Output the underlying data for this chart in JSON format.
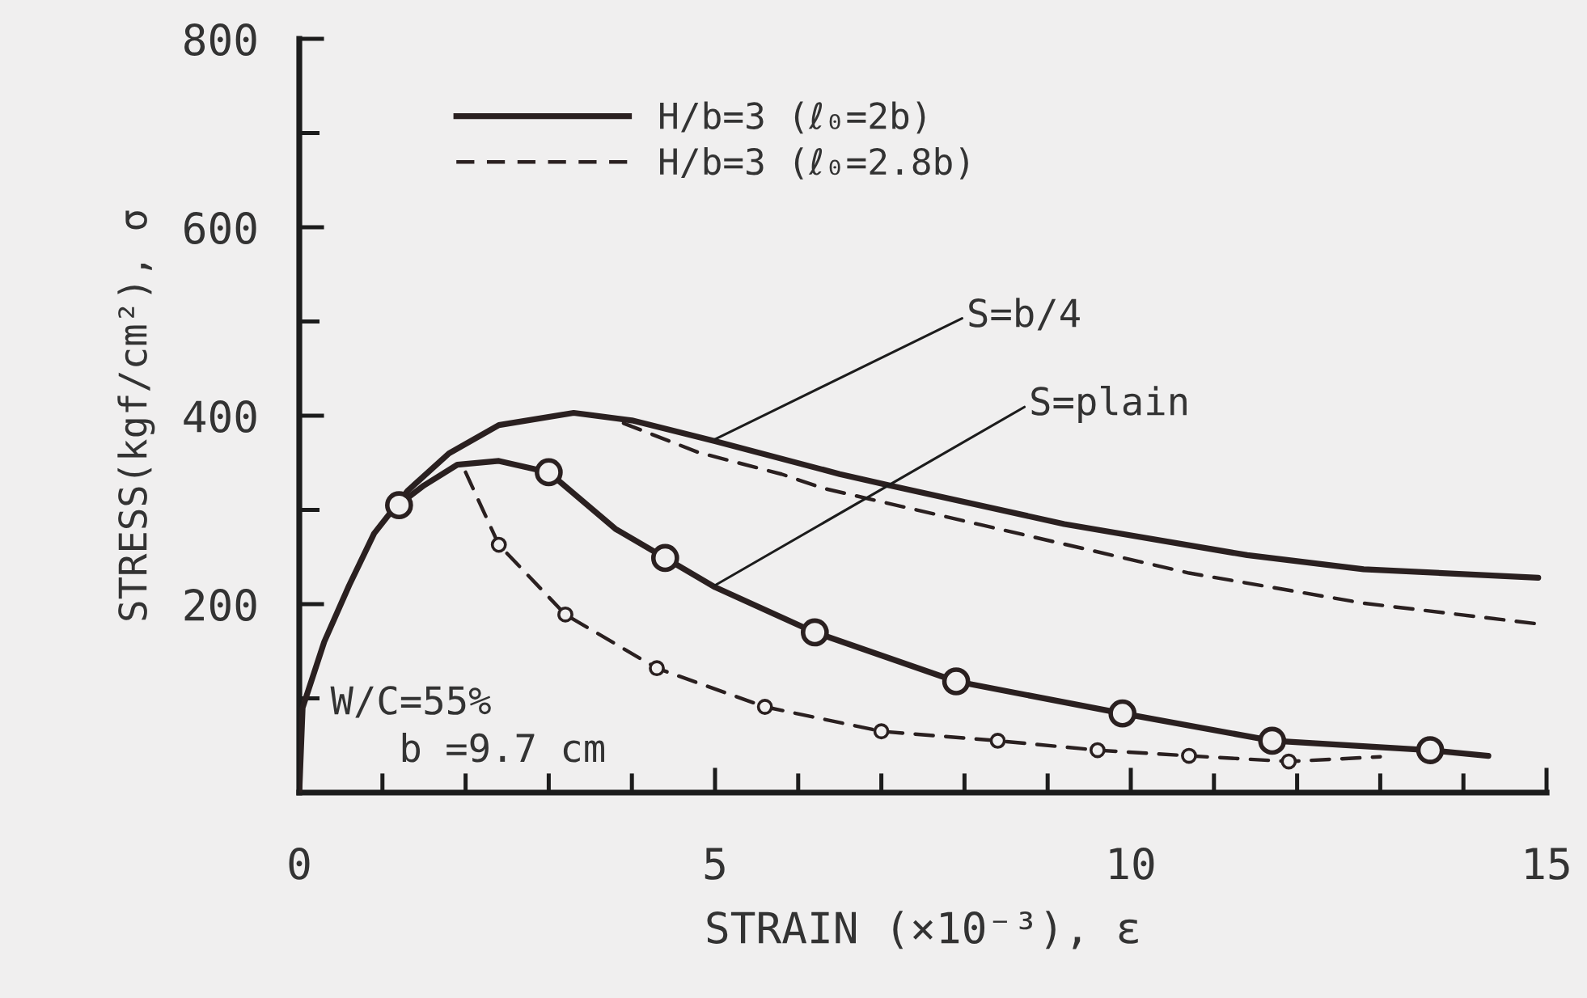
{
  "chart_data": {
    "type": "line",
    "xlabel": "STRAIN (×10⁻³), ε",
    "ylabel": "STRESS(kgf/cm²), σ",
    "xlim": [
      0,
      15
    ],
    "xticks": [
      0,
      {
        "value": 1,
        "label": null
      },
      {
        "value": 2,
        "label": null
      },
      {
        "value": 3,
        "label": null
      },
      {
        "value": 4,
        "label": null
      },
      5,
      {
        "value": 6,
        "label": null
      },
      {
        "value": 7,
        "label": null
      },
      {
        "value": 8,
        "label": null
      },
      {
        "value": 9,
        "label": null
      },
      10,
      {
        "value": 11,
        "label": null
      },
      {
        "value": 12,
        "label": null
      },
      {
        "value": 13,
        "label": null
      },
      {
        "value": 14,
        "label": null
      },
      15
    ],
    "ylim": [
      0,
      800
    ],
    "yticks": [
      {
        "value": 100,
        "label": null
      },
      200,
      {
        "value": 300,
        "label": null
      },
      400,
      {
        "value": 500,
        "label": null
      },
      600,
      {
        "value": 700,
        "label": null
      },
      800
    ],
    "legend": "top left",
    "series": [
      {
        "name": "H/b=3 (ℓ₀=2b)",
        "color": "#2a2020",
        "line_style": "solid",
        "x": [
          0,
          0.04,
          0.3,
          0.6,
          0.9,
          1.3,
          1.8,
          2.4,
          3.3,
          4.0,
          5.0,
          6.5,
          7.1,
          9.2,
          11.4,
          12.8,
          14.9
        ],
        "values": [
          0,
          90,
          160,
          220,
          275,
          320,
          360,
          390,
          403,
          395,
          373,
          338,
          326,
          285,
          252,
          237,
          228
        ]
      },
      {
        "name": "H/b=3 (ℓ₀=2.8b)",
        "color": "#2a2020",
        "line_style": "dashed",
        "x": [
          3.9,
          4.8,
          5.8,
          6.3,
          8.5,
          10.7,
          12.8,
          14.9
        ],
        "values": [
          392,
          361,
          338,
          323,
          278,
          233,
          201,
          179
        ]
      },
      {
        "color": "#2a2020",
        "line_style": "solid",
        "x": [
          1.2,
          1.5,
          1.9,
          2.4,
          3.0,
          3.8,
          4.4,
          5.0,
          6.2,
          7.9,
          9.9,
          11.7,
          13.6,
          14.3
        ],
        "values": [
          306,
          326,
          348,
          352,
          340,
          280,
          249,
          218,
          170,
          118,
          84,
          55,
          45,
          39
        ]
      },
      {
        "color": "#2a2020",
        "line_style": "dashed",
        "x": [
          2.0,
          2.4,
          3.2,
          4.3,
          5.6,
          7.0,
          8.4,
          9.6,
          10.7,
          11.9,
          13.0
        ],
        "values": [
          340,
          263,
          189,
          132,
          91,
          65,
          55,
          45,
          39,
          33,
          38
        ]
      },
      {
        "type": "scatter",
        "color": "#2a2020",
        "marker": "circle",
        "x": [
          1.2,
          3.0,
          4.4,
          6.2,
          7.9,
          9.9,
          11.7,
          13.6
        ],
        "values": [
          305,
          340,
          249,
          170,
          118,
          84,
          55,
          45
        ]
      },
      {
        "type": "scatter",
        "color": "#2a2020",
        "marker": "circle",
        "x": [
          2.4,
          3.2,
          4.3,
          5.6,
          7.0,
          8.4,
          9.6,
          10.7,
          11.9
        ],
        "values": [
          263,
          189,
          132,
          91,
          65,
          55,
          45,
          39,
          33
        ]
      }
    ],
    "annotations": [
      {
        "text": "S=b/4",
        "x": 5.0,
        "y": 375
      },
      {
        "text": "S=plain",
        "x": 5.0,
        "y": 220
      },
      "W/C=55%",
      "b =9.7 cm"
    ]
  }
}
